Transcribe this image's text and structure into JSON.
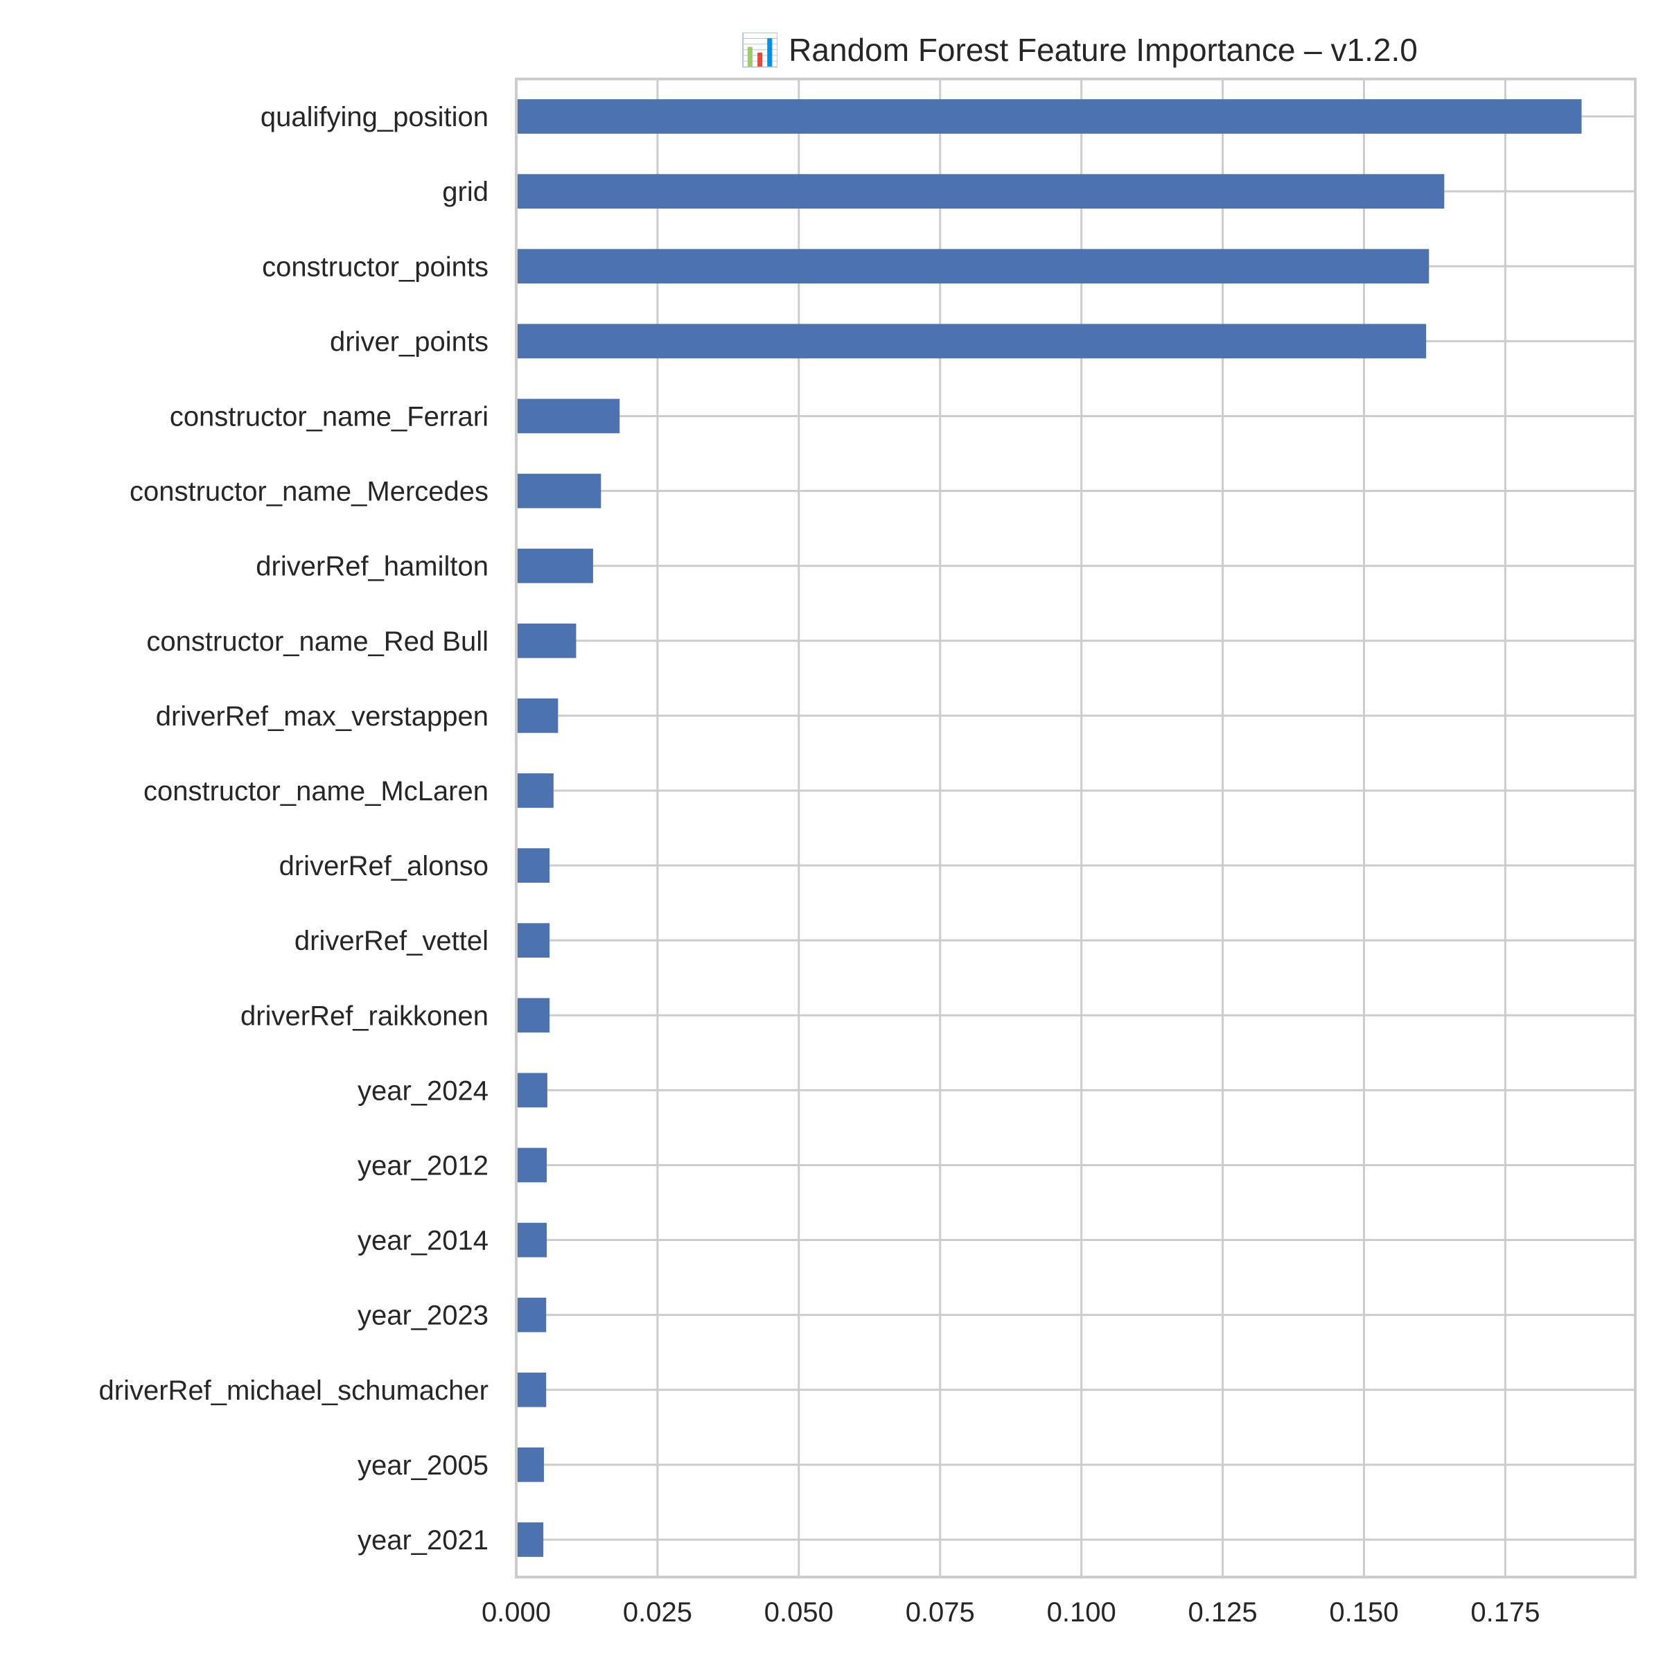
{
  "chart_data": {
    "type": "bar",
    "orientation": "horizontal",
    "title": "📊 Random Forest Feature Importance – v1.2.0",
    "xlabel": "",
    "ylabel": "",
    "xlim": [
      0,
      0.198
    ],
    "grid": true,
    "legend": "none",
    "bar_color": "#4c72b0",
    "grid_color": "#cccccc",
    "xticks": [
      "0.000",
      "0.025",
      "0.050",
      "0.075",
      "0.100",
      "0.125",
      "0.150",
      "0.175"
    ],
    "categories": [
      "qualifying_position",
      "grid",
      "constructor_points",
      "driver_points",
      "constructor_name_Ferrari",
      "constructor_name_Mercedes",
      "driverRef_hamilton",
      "constructor_name_Red Bull",
      "driverRef_max_verstappen",
      "constructor_name_McLaren",
      "driverRef_alonso",
      "driverRef_vettel",
      "driverRef_raikkonen",
      "year_2024",
      "year_2012",
      "year_2014",
      "year_2023",
      "driverRef_michael_schumacher",
      "year_2005",
      "year_2021"
    ],
    "values": [
      0.1885,
      0.1642,
      0.1615,
      0.161,
      0.0183,
      0.015,
      0.0136,
      0.0106,
      0.0074,
      0.0066,
      0.0059,
      0.0059,
      0.0059,
      0.0055,
      0.0054,
      0.0054,
      0.0053,
      0.0053,
      0.0049,
      0.0048
    ]
  }
}
